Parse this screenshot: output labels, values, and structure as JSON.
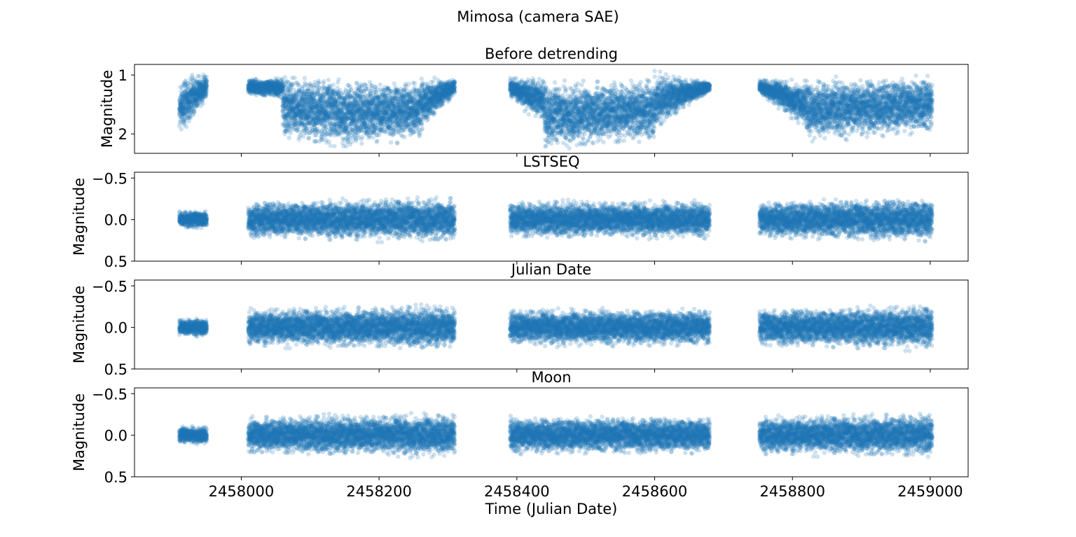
{
  "figure_title": "Mimosa (camera SAE)",
  "x_axis_label": "Time (Julian Date)",
  "x_tick_labels": [
    "2458000",
    "2458200",
    "2458400",
    "2458600",
    "2458800",
    "2459000"
  ],
  "colors": {
    "points": "#1f77b4",
    "axes": "#000000",
    "background": "#ffffff"
  },
  "chart_data": [
    {
      "type": "scatter",
      "title": "Before detrending",
      "xlabel": "",
      "ylabel": "Magnitude",
      "xlim": [
        2457845,
        2459055
      ],
      "ylim": [
        2.33,
        0.82
      ],
      "y_inverted": true,
      "yticks": [
        1,
        2
      ],
      "ytick_labels": [
        "1",
        "2"
      ],
      "x_ticks_shown": false,
      "segments": [
        {
          "x": [
            2457910,
            2457950
          ],
          "center": [
            1.55,
            1.2
          ],
          "spread": [
            0.55,
            0.25
          ]
        },
        {
          "x": [
            2458010,
            2458060
          ],
          "center": [
            1.2,
            1.22
          ],
          "spread": [
            0.15,
            0.2
          ]
        },
        {
          "x": [
            2458060,
            2458150
          ],
          "center": [
            1.55,
            1.65
          ],
          "spread": [
            0.6,
            0.7
          ]
        },
        {
          "x": [
            2458150,
            2458260
          ],
          "center": [
            1.65,
            1.6
          ],
          "spread": [
            0.65,
            0.6
          ]
        },
        {
          "x": [
            2458260,
            2458310
          ],
          "center": [
            1.5,
            1.2
          ],
          "spread": [
            0.5,
            0.15
          ]
        },
        {
          "x": [
            2458390,
            2458440
          ],
          "center": [
            1.22,
            1.45
          ],
          "spread": [
            0.2,
            0.45
          ]
        },
        {
          "x": [
            2458440,
            2458600
          ],
          "center": [
            1.7,
            1.6
          ],
          "spread": [
            0.65,
            0.6
          ]
        },
        {
          "x": [
            2458600,
            2458680
          ],
          "center": [
            1.45,
            1.2
          ],
          "spread": [
            0.55,
            0.1
          ]
        },
        {
          "x": [
            2458752,
            2458820
          ],
          "center": [
            1.2,
            1.5
          ],
          "spread": [
            0.15,
            0.45
          ]
        },
        {
          "x": [
            2458820,
            2459003
          ],
          "center": [
            1.6,
            1.5
          ],
          "spread": [
            0.6,
            0.55
          ]
        }
      ]
    },
    {
      "type": "scatter",
      "title": "LSTSEQ",
      "xlabel": "",
      "ylabel": "Magnitude",
      "xlim": [
        2457845,
        2459055
      ],
      "ylim": [
        0.5,
        -0.57
      ],
      "y_inverted": true,
      "yticks": [
        -0.5,
        0.0,
        0.5
      ],
      "ytick_labels": [
        "−0.5",
        "0.0",
        "0.5"
      ],
      "x_ticks_shown": false,
      "segments": [
        {
          "x": [
            2457910,
            2457950
          ],
          "center": [
            0.0,
            0.0
          ],
          "spread": [
            0.12,
            0.12
          ]
        },
        {
          "x": [
            2458010,
            2458310
          ],
          "center": [
            0.0,
            0.0
          ],
          "spread": [
            0.25,
            0.3
          ]
        },
        {
          "x": [
            2458390,
            2458680
          ],
          "center": [
            0.0,
            0.0
          ],
          "spread": [
            0.25,
            0.25
          ]
        },
        {
          "x": [
            2458752,
            2459003
          ],
          "center": [
            0.0,
            0.0
          ],
          "spread": [
            0.25,
            0.3
          ]
        }
      ]
    },
    {
      "type": "scatter",
      "title": "Julian Date",
      "xlabel": "",
      "ylabel": "Magnitude",
      "xlim": [
        2457845,
        2459055
      ],
      "ylim": [
        0.5,
        -0.57
      ],
      "y_inverted": true,
      "yticks": [
        -0.5,
        0.0,
        0.5
      ],
      "ytick_labels": [
        "−0.5",
        "0.0",
        "0.5"
      ],
      "x_ticks_shown": false,
      "segments": [
        {
          "x": [
            2457910,
            2457950
          ],
          "center": [
            0.0,
            0.0
          ],
          "spread": [
            0.12,
            0.12
          ]
        },
        {
          "x": [
            2458010,
            2458310
          ],
          "center": [
            0.0,
            0.0
          ],
          "spread": [
            0.25,
            0.3
          ]
        },
        {
          "x": [
            2458390,
            2458680
          ],
          "center": [
            0.0,
            0.0
          ],
          "spread": [
            0.25,
            0.25
          ]
        },
        {
          "x": [
            2458752,
            2459003
          ],
          "center": [
            0.0,
            0.0
          ],
          "spread": [
            0.25,
            0.3
          ]
        }
      ]
    },
    {
      "type": "scatter",
      "title": "Moon",
      "xlabel": "Time (Julian Date)",
      "ylabel": "Magnitude",
      "xlim": [
        2457845,
        2459055
      ],
      "ylim": [
        0.5,
        -0.57
      ],
      "y_inverted": true,
      "yticks": [
        -0.5,
        0.0,
        0.5
      ],
      "ytick_labels": [
        "−0.5",
        "0.0",
        "0.5"
      ],
      "x_ticks_shown": true,
      "xticks": [
        2458000,
        2458200,
        2458400,
        2458600,
        2458800,
        2459000
      ],
      "segments": [
        {
          "x": [
            2457910,
            2457950
          ],
          "center": [
            0.0,
            0.0
          ],
          "spread": [
            0.12,
            0.12
          ]
        },
        {
          "x": [
            2458010,
            2458310
          ],
          "center": [
            0.0,
            0.0
          ],
          "spread": [
            0.25,
            0.3
          ]
        },
        {
          "x": [
            2458390,
            2458680
          ],
          "center": [
            0.0,
            0.0
          ],
          "spread": [
            0.25,
            0.25
          ]
        },
        {
          "x": [
            2458752,
            2459003
          ],
          "center": [
            0.0,
            0.0
          ],
          "spread": [
            0.25,
            0.3
          ]
        }
      ]
    }
  ]
}
